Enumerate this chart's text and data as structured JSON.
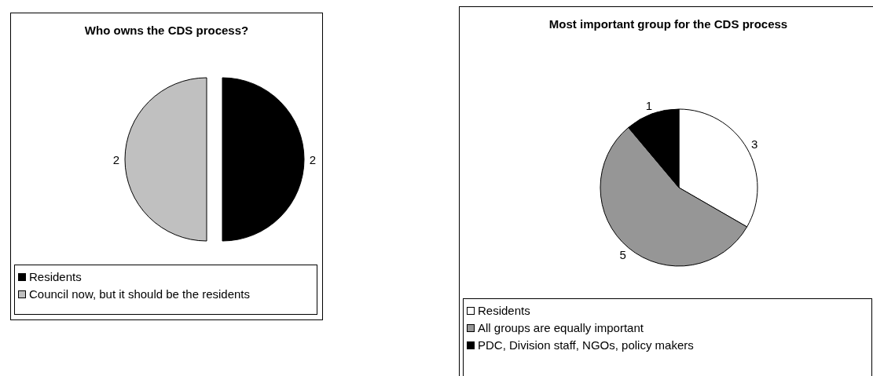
{
  "chart_data": [
    {
      "type": "pie",
      "title": "Who owns the CDS process?",
      "categories": [
        "Residents",
        "Council now, but it should be the residents"
      ],
      "values": [
        2,
        2
      ],
      "colors": [
        "#000000",
        "#c0c0c0"
      ],
      "data_labels": true,
      "legend": "bottom"
    },
    {
      "type": "pie",
      "title": "Most important group for the CDS process",
      "categories": [
        "Residents",
        "All groups are equally important",
        "PDC, Division staff, NGOs, policy makers"
      ],
      "values": [
        3,
        5,
        1
      ],
      "colors": [
        "#ffffff",
        "#969696",
        "#000000"
      ],
      "data_labels": true,
      "legend": "bottom"
    }
  ]
}
